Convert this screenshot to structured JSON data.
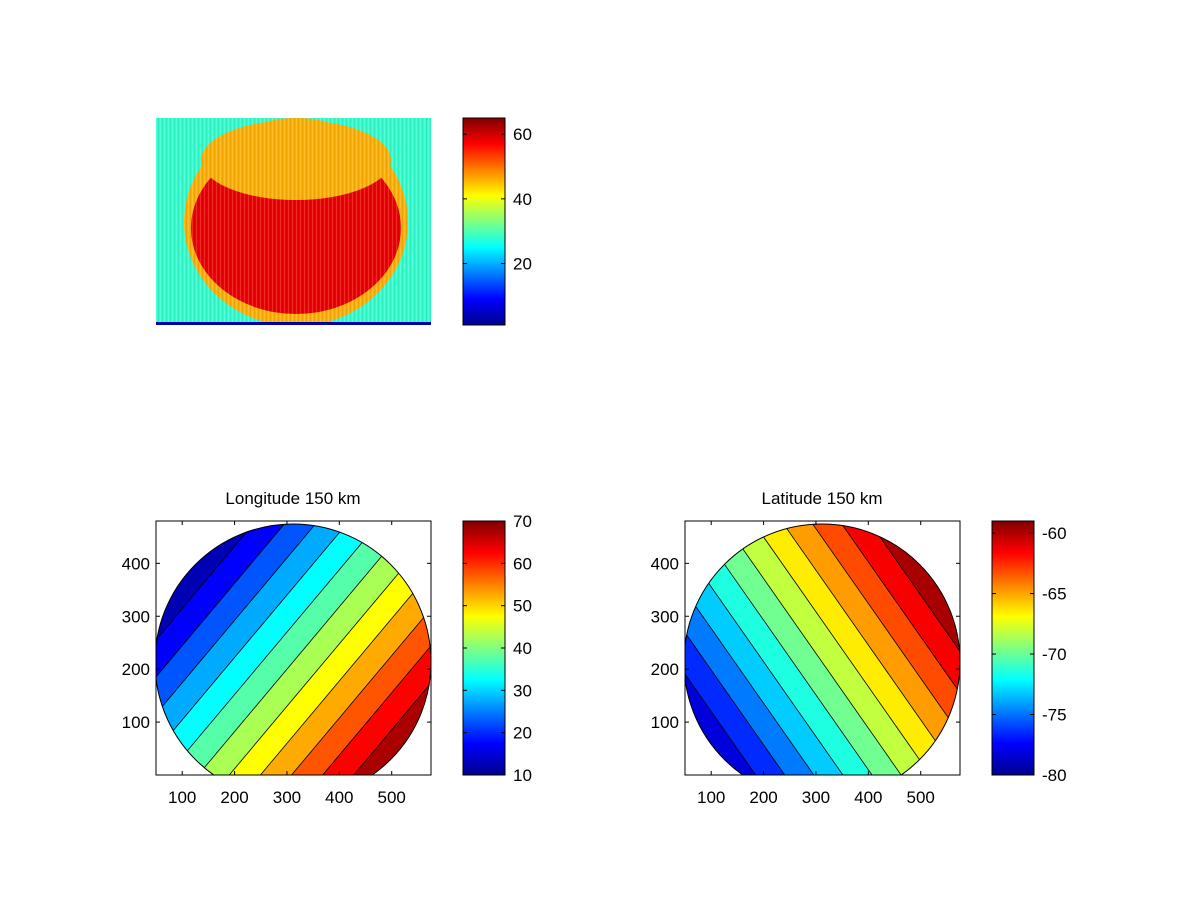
{
  "colormap": [
    "#00008f",
    "#0000ff",
    "#00ffff",
    "#80ff80",
    "#ffff00",
    "#ff8000",
    "#ff0000",
    "#800000"
  ],
  "chart_data": [
    {
      "type": "heatmap",
      "title": "",
      "xlabel": "",
      "ylabel": "",
      "colorbar": {
        "min": 1,
        "max": 65,
        "ticks": [
          20,
          40,
          60
        ]
      },
      "background_value": 28,
      "disk_value": 58,
      "rim_value": 46
    },
    {
      "type": "contour",
      "title": "Longitude 150 km",
      "xlim": [
        50,
        575
      ],
      "ylim": [
        0,
        480
      ],
      "xticks": [
        100,
        200,
        300,
        400,
        500
      ],
      "yticks": [
        100,
        200,
        300,
        400
      ],
      "colorbar": {
        "min": 10,
        "max": 70,
        "ticks": [
          10,
          20,
          30,
          40,
          50,
          60,
          70
        ]
      },
      "field": {
        "center_value": 40,
        "gradient_direction_deg": 320,
        "range_from_center": 30
      }
    },
    {
      "type": "contour",
      "title": "Latitude 150 km",
      "xlim": [
        50,
        575
      ],
      "ylim": [
        0,
        480
      ],
      "xticks": [
        100,
        200,
        300,
        400,
        500
      ],
      "yticks": [
        100,
        200,
        300,
        400
      ],
      "colorbar": {
        "min": -80,
        "max": -59,
        "ticks": [
          -80,
          -75,
          -70,
          -65,
          -60
        ]
      },
      "field": {
        "center_value": -69,
        "gradient_direction_deg": 35,
        "range_from_center": 10
      }
    }
  ]
}
